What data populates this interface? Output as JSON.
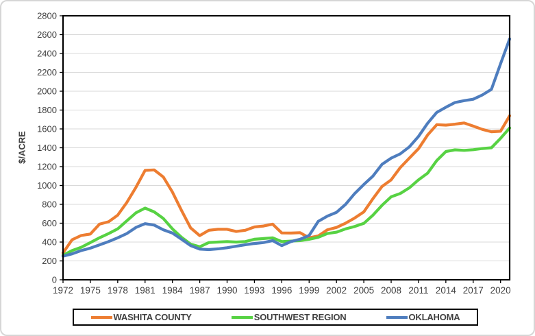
{
  "figure": {
    "background": "#ffffff",
    "border_color": "#d6d6d6"
  },
  "chart_data": {
    "type": "line",
    "title": "",
    "xlabel": "",
    "ylabel": "$/ACRE",
    "ylim": [
      0,
      2800
    ],
    "ytick_step": 200,
    "ytick_values": [
      0,
      200,
      400,
      600,
      800,
      1000,
      1200,
      1400,
      1600,
      1800,
      2000,
      2200,
      2400,
      2600,
      2800
    ],
    "xtick_labels": [
      "1972",
      "1975",
      "1978",
      "1981",
      "1984",
      "1987",
      "1990",
      "1993",
      "1996",
      "1999",
      "2002",
      "2005",
      "2008",
      "2011",
      "2014",
      "2017",
      "2020"
    ],
    "x": [
      1972,
      1973,
      1974,
      1975,
      1976,
      1977,
      1978,
      1979,
      1980,
      1981,
      1982,
      1983,
      1984,
      1985,
      1986,
      1987,
      1988,
      1989,
      1990,
      1991,
      1992,
      1993,
      1994,
      1995,
      1996,
      1997,
      1998,
      1999,
      2000,
      2001,
      2002,
      2003,
      2004,
      2005,
      2006,
      2007,
      2008,
      2009,
      2010,
      2011,
      2012,
      2013,
      2014,
      2015,
      2016,
      2017,
      2018,
      2019,
      2020,
      2021
    ],
    "grid": "horizontal",
    "legend_position": "bottom",
    "style": {
      "grid_color": "#d9d9d9",
      "axis_text_color": "#404040",
      "plot_border_color": "#000000",
      "legend_border_color": "#000000"
    },
    "series": [
      {
        "name": "WASHITA COUNTY",
        "color": "#ED7D31",
        "values": [
          285,
          425,
          470,
          485,
          590,
          615,
          685,
          820,
          980,
          1160,
          1165,
          1090,
          930,
          735,
          550,
          468,
          525,
          535,
          535,
          512,
          525,
          560,
          570,
          590,
          497,
          495,
          500,
          445,
          465,
          530,
          555,
          600,
          655,
          720,
          860,
          990,
          1060,
          1190,
          1290,
          1390,
          1535,
          1645,
          1640,
          1650,
          1663,
          1630,
          1595,
          1570,
          1575,
          1740
        ]
      },
      {
        "name": "SOUTHWEST REGION",
        "color": "#57D243",
        "values": [
          260,
          310,
          345,
          395,
          445,
          490,
          540,
          625,
          710,
          760,
          720,
          650,
          540,
          450,
          378,
          350,
          395,
          400,
          405,
          400,
          405,
          430,
          437,
          445,
          405,
          410,
          415,
          430,
          450,
          490,
          505,
          540,
          565,
          598,
          685,
          790,
          880,
          915,
          975,
          1060,
          1130,
          1265,
          1360,
          1378,
          1372,
          1380,
          1392,
          1400,
          1500,
          1610
        ]
      },
      {
        "name": "OKLAHOMA",
        "color": "#4E7DBE",
        "values": [
          250,
          275,
          310,
          335,
          370,
          405,
          445,
          490,
          555,
          595,
          580,
          530,
          495,
          430,
          362,
          325,
          320,
          328,
          340,
          356,
          372,
          385,
          395,
          415,
          362,
          405,
          430,
          470,
          620,
          675,
          715,
          800,
          915,
          1010,
          1100,
          1225,
          1290,
          1335,
          1410,
          1520,
          1660,
          1775,
          1830,
          1880,
          1900,
          1915,
          1960,
          2020,
          2290,
          2555
        ]
      }
    ]
  }
}
